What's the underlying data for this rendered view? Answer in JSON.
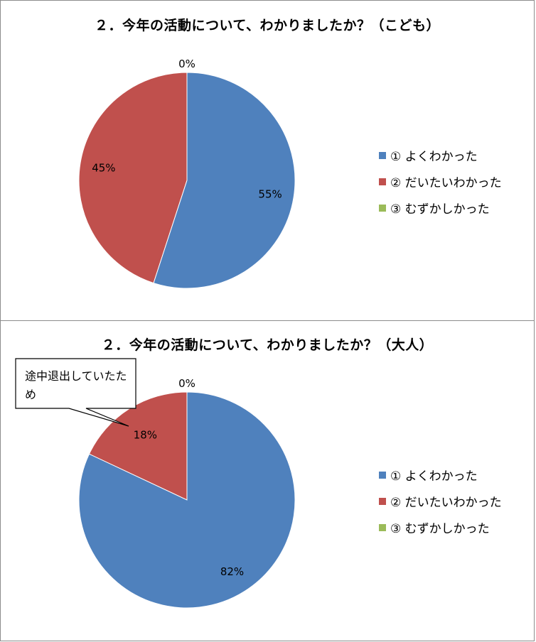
{
  "colors": {
    "blue": "#4f81bd",
    "red": "#c0504d",
    "green": "#9bbb59"
  },
  "chart_data": [
    {
      "type": "pie",
      "title": "２．今年の活動について、わかりましたか？（こども）",
      "categories": [
        "① よくわかった",
        "② だいたいわかった",
        "③ むずかしかった"
      ],
      "values": [
        55,
        45,
        0
      ],
      "data_labels": [
        "55%",
        "45%",
        "0%"
      ],
      "legend": "right"
    },
    {
      "type": "pie",
      "title": "２．今年の活動について、わかりましたか？（大人）",
      "categories": [
        "① よくわかった",
        "② だいたいわかった",
        "③ むずかしかった"
      ],
      "values": [
        82,
        18,
        0
      ],
      "data_labels": [
        "82%",
        "18%",
        "0%"
      ],
      "legend": "right",
      "annotation": "途中退出していたため"
    }
  ]
}
